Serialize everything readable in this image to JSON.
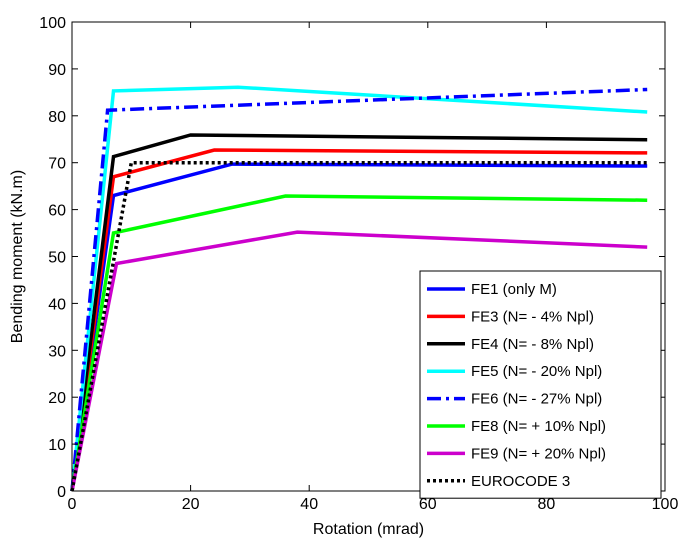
{
  "chart_data": {
    "type": "line",
    "title": "",
    "xlabel": "Rotation (mrad)",
    "ylabel": "Bending moment (kN.m)",
    "xlim": [
      0,
      100
    ],
    "ylim": [
      0,
      100
    ],
    "xticks": [
      0,
      20,
      40,
      60,
      80,
      100
    ],
    "yticks": [
      0,
      10,
      20,
      30,
      40,
      50,
      60,
      70,
      80,
      90,
      100
    ],
    "xtick_labels": [
      "0",
      "20",
      "40",
      "60",
      "80",
      "100"
    ],
    "ytick_labels": [
      "0",
      "10",
      "20",
      "30",
      "40",
      "50",
      "60",
      "70",
      "80",
      "90",
      "100"
    ],
    "grid": false,
    "legend_position": "bottom-right",
    "series": [
      {
        "name": "FE1 (only M)",
        "color": "#0000ff",
        "style": "solid",
        "x": [
          0,
          7,
          27,
          97
        ],
        "y": [
          0,
          63,
          69.7,
          69.3
        ]
      },
      {
        "name": "FE3 (N= - 4% Npl)",
        "color": "#ff0000",
        "style": "solid",
        "x": [
          0,
          7,
          24,
          97
        ],
        "y": [
          0,
          67,
          72.7,
          72.1
        ]
      },
      {
        "name": "FE4 (N= - 8% Npl)",
        "color": "#000000",
        "style": "solid",
        "x": [
          0,
          7,
          20,
          97
        ],
        "y": [
          0,
          71.3,
          75.9,
          74.9
        ]
      },
      {
        "name": "FE5 (N= - 20% Npl)",
        "color": "#00ffff",
        "style": "solid",
        "x": [
          0,
          7,
          28,
          97
        ],
        "y": [
          0,
          85.3,
          86.1,
          80.8
        ]
      },
      {
        "name": "FE6 (N= - 27% Npl)",
        "color": "#0000ff",
        "style": "dashdot",
        "x": [
          0,
          6,
          97
        ],
        "y": [
          0,
          81.2,
          85.6
        ]
      },
      {
        "name": "FE8 (N= + 10% Npl)",
        "color": "#00ff00",
        "style": "solid",
        "x": [
          0,
          7,
          36,
          97
        ],
        "y": [
          0,
          55,
          62.9,
          62
        ]
      },
      {
        "name": "FE9 (N= + 20% Npl)",
        "color": "#cc00cc",
        "style": "solid",
        "x": [
          0,
          7.5,
          38,
          97
        ],
        "y": [
          0,
          48.5,
          55.2,
          52
        ]
      },
      {
        "name": "EUROCODE 3",
        "color": "#000000",
        "style": "dotted",
        "x": [
          0,
          10,
          97
        ],
        "y": [
          0,
          70,
          70
        ]
      }
    ]
  }
}
